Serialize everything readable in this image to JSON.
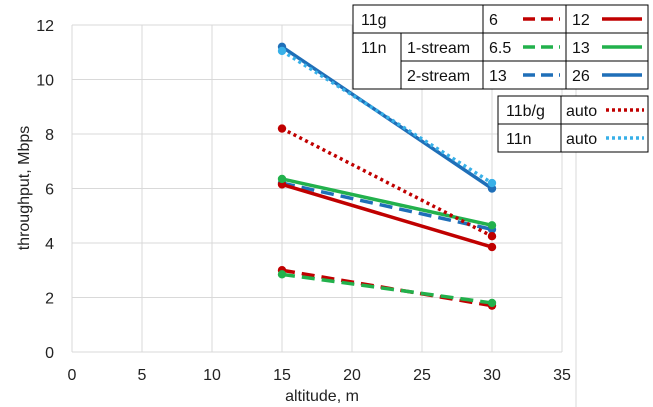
{
  "chart_data": {
    "type": "line",
    "xlabel": "altitude, m",
    "ylabel": "throughput, Mbps",
    "xlim": [
      0,
      35
    ],
    "ylim": [
      0,
      12
    ],
    "x_ticks": [
      "0",
      "5",
      "10",
      "15",
      "20",
      "25",
      "30",
      "35"
    ],
    "y_ticks": [
      "0",
      "2",
      "4",
      "6",
      "8",
      "10",
      "12"
    ],
    "grid": "vertical and horizontal",
    "colors": {
      "red": "#c00000",
      "green": "#22b14c",
      "blue": "#1f6fb8",
      "lightblue": "#38b0e8"
    },
    "series": [
      {
        "name": "11g 6",
        "x": [
          15,
          30
        ],
        "y": [
          3.0,
          1.7
        ],
        "color": "#c00000",
        "style": "dashed"
      },
      {
        "name": "11g 12",
        "x": [
          15,
          30
        ],
        "y": [
          6.15,
          3.85
        ],
        "color": "#c00000",
        "style": "solid"
      },
      {
        "name": "11n 1-stream 6.5",
        "x": [
          15,
          30
        ],
        "y": [
          2.85,
          1.8
        ],
        "color": "#22b14c",
        "style": "dashed"
      },
      {
        "name": "11n 1-stream 13",
        "x": [
          15,
          30
        ],
        "y": [
          6.35,
          4.65
        ],
        "color": "#22b14c",
        "style": "solid"
      },
      {
        "name": "11n 2-stream 13",
        "x": [
          15,
          30
        ],
        "y": [
          6.2,
          4.5
        ],
        "color": "#1f6fb8",
        "style": "dashed"
      },
      {
        "name": "11n 2-stream 26",
        "x": [
          15,
          30
        ],
        "y": [
          11.2,
          6.0
        ],
        "color": "#1f6fb8",
        "style": "solid"
      },
      {
        "name": "11b/g auto",
        "x": [
          15,
          30
        ],
        "y": [
          8.2,
          4.25
        ],
        "color": "#c00000",
        "style": "dotted"
      },
      {
        "name": "11n auto",
        "x": [
          15,
          30
        ],
        "y": [
          11.05,
          6.2
        ],
        "color": "#38b0e8",
        "style": "dotted"
      }
    ],
    "legend1": {
      "rows": [
        {
          "c1": "11g",
          "c2": "",
          "v1": "6",
          "v2": "12",
          "color": "#c00000"
        },
        {
          "c1": "11n",
          "c2": "1-stream",
          "v1": "6.5",
          "v2": "13",
          "color": "#22b14c"
        },
        {
          "c1": "",
          "c2": "2-stream",
          "v1": "13",
          "v2": "26",
          "color": "#1f6fb8"
        }
      ]
    },
    "legend2": {
      "rows": [
        {
          "c1": "11b/g",
          "v": "auto",
          "color": "#c00000"
        },
        {
          "c1": "11n",
          "v": "auto",
          "color": "#38b0e8"
        }
      ]
    }
  }
}
